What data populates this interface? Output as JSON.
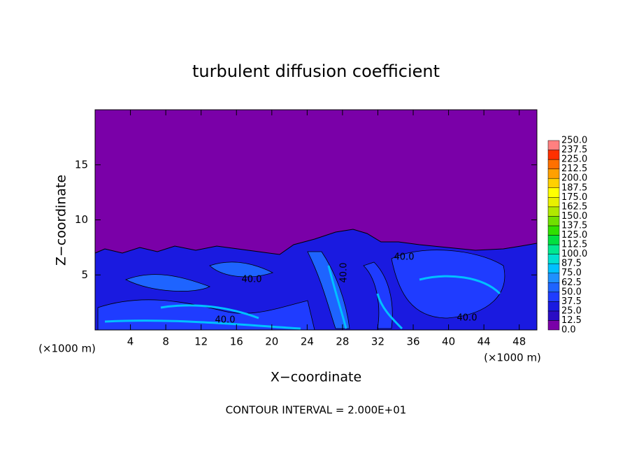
{
  "chart_data": {
    "type": "contour",
    "title": "turbulent diffusion coefficient",
    "x_label": "X−coordinate",
    "y_label": "Z−coordinate",
    "x_unit": "(×1000 m)",
    "y_unit": "(×1000 m)",
    "footer": "CONTOUR INTERVAL = 2.000E+01",
    "xlim": [
      0,
      50
    ],
    "ylim": [
      0,
      20
    ],
    "xticks": [
      4,
      8,
      12,
      16,
      20,
      24,
      28,
      32,
      36,
      40,
      44,
      48
    ],
    "yticks": [
      5,
      10,
      15
    ],
    "levels": [
      {
        "value": 0,
        "label": "0.0"
      },
      12.5,
      {
        "value": 25,
        "label": "25.0"
      },
      37.5,
      {
        "value": 50,
        "label": "50.0"
      },
      62.5,
      {
        "value": 75,
        "label": "75.0"
      },
      87.5,
      {
        "value": 100,
        "label": "100.0"
      },
      112.5,
      {
        "value": 125,
        "label": "125.0"
      },
      137.5,
      {
        "value": 150,
        "label": "150.0"
      },
      162.5,
      {
        "value": 175,
        "label": "175.0"
      },
      187.5,
      {
        "value": 200,
        "label": "200.0"
      },
      212.5,
      {
        "value": 225,
        "label": "225.0"
      },
      237.5,
      {
        "value": 250,
        "label": "250.0"
      }
    ],
    "colors": [
      "#7a00a8",
      "#2a0cc4",
      "#1a1ae0",
      "#1f3cff",
      "#1e64ff",
      "#1e90ff",
      "#00c0ff",
      "#00e0d0",
      "#00e890",
      "#00e040",
      "#30e000",
      "#70e000",
      "#b0e800",
      "#e8f000",
      "#ffff00",
      "#ffd000",
      "#ffa000",
      "#ff7000",
      "#ff3000",
      "#ff8080"
    ],
    "contour_labels": [
      "40.0",
      "40.0",
      "40.0",
      "40.0",
      "40.0"
    ]
  }
}
